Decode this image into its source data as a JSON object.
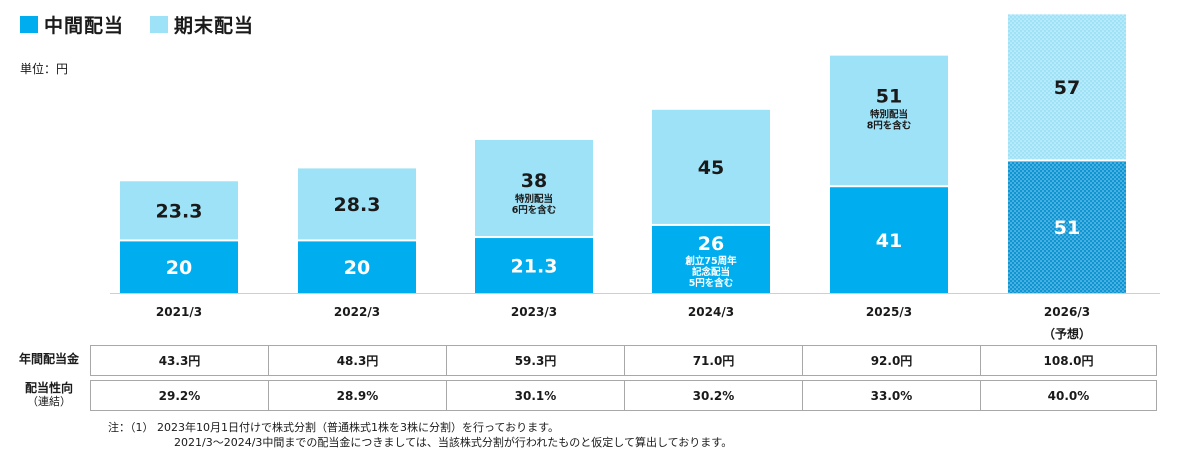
{
  "legend": {
    "interim_label": "中間配当",
    "year_end_label": "期末配当"
  },
  "unit_label": "単位：円",
  "colors": {
    "interim": "#00aeef",
    "year_end": "#9ee2f7",
    "forecast_interim": "#0e95d3",
    "forecast_year_end": "#9ee2f7",
    "dot": "#ffffff",
    "axis": "#cfcfcf",
    "table_border": "#a8a8a8"
  },
  "chart_data": {
    "type": "bar",
    "stacked": true,
    "categories": [
      "2021/3",
      "2022/3",
      "2023/3",
      "2024/3",
      "2025/3",
      "2026/3"
    ],
    "category_sublabels": [
      "",
      "",
      "",
      "",
      "",
      "（予想）"
    ],
    "series": [
      {
        "name": "中間配当",
        "values": [
          20,
          20,
          21.3,
          26,
          41,
          51
        ],
        "labels": [
          "20",
          "20",
          "21.3",
          "26",
          "41",
          "51"
        ],
        "notes": [
          "",
          "",
          "",
          "創立75周年\n記念配当\n5円を含む",
          "",
          ""
        ]
      },
      {
        "name": "期末配当",
        "values": [
          23.3,
          28.3,
          38,
          45,
          51,
          57
        ],
        "labels": [
          "23.3",
          "28.3",
          "38",
          "45",
          "51",
          "57"
        ],
        "notes": [
          "",
          "",
          "特別配当\n6円を含む",
          "",
          "特別配当\n8円を含む",
          ""
        ]
      }
    ],
    "forecast_index": 5,
    "ylim": [
      0,
      110
    ],
    "grid": false,
    "legend_position": "top-left"
  },
  "table": {
    "rows": [
      {
        "label": "年間配当金",
        "sublabel": "",
        "values": [
          "43.3円",
          "48.3円",
          "59.3円",
          "71.0円",
          "92.0円",
          "108.0円"
        ]
      },
      {
        "label": "配当性向",
        "sublabel": "（連結）",
        "values": [
          "29.2%",
          "28.9%",
          "30.1%",
          "30.2%",
          "33.0%",
          "40.0%"
        ]
      }
    ]
  },
  "footnote": {
    "line1": "注：（1） 2023年10月1日付けで株式分割（普通株式1株を3株に分割）を行っております。",
    "line2": "2021/3～2024/3中間までの配当金につきましては、当該株式分割が行われたものと仮定して算出しております。"
  }
}
